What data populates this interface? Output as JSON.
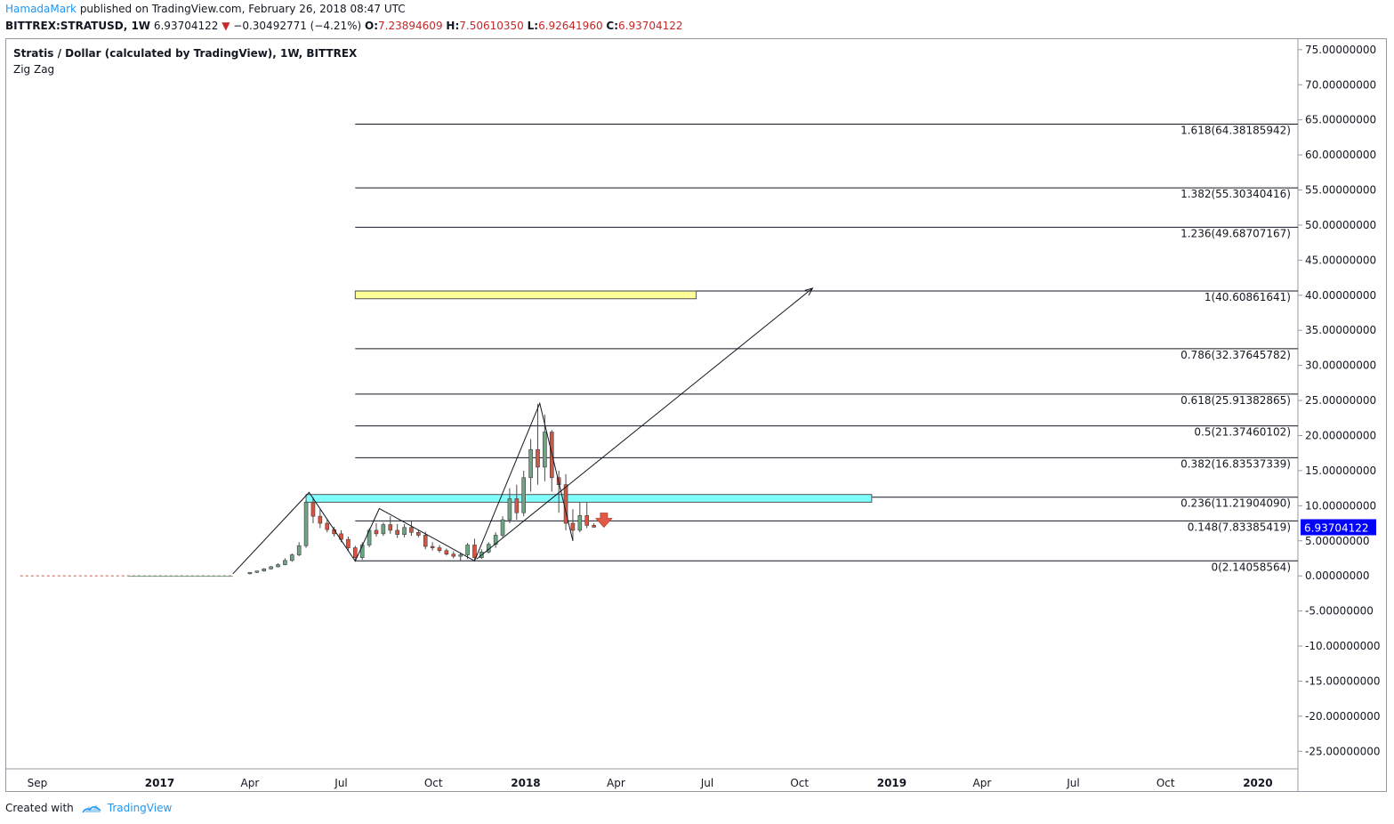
{
  "header": {
    "author": "HamadaMark",
    "published": "published on TradingView.com, February 26, 2018 08:47 UTC",
    "symbol": "BITTREX:STRATUSD, 1W",
    "last": "6.93704122",
    "change_icon": "triangle-down-icon",
    "change": "−0.30492771 (−4.21%)",
    "o_label": "O:",
    "o": "7.23894609",
    "h_label": "H:",
    "h": "7.50610350",
    "l_label": "L:",
    "l": "6.92641960",
    "c_label": "C:",
    "c": "6.93704122"
  },
  "legend": {
    "title": "Stratis / Dollar (calculated by TradingView), 1W, BITTREX",
    "indicator": "Zig Zag"
  },
  "footer": {
    "created_with": "Created with",
    "brand": "TradingView",
    "logo_icon": "tradingview-cloud-icon"
  },
  "colors": {
    "up": "#6ba583",
    "down": "#d75442",
    "price_tag": "#0000ff",
    "highlight_yellow": "#ffff99",
    "highlight_cyan": "#80ffff",
    "arrow_red": "#e05a47"
  },
  "chart_data": {
    "type": "candlestick",
    "title": "Stratis / Dollar (calculated by TradingView), 1W, BITTREX",
    "ylim": [
      -27.5,
      76.5
    ],
    "y_ticks": [
      75,
      70,
      65,
      60,
      55,
      50,
      45,
      40,
      35,
      30,
      25,
      20,
      15,
      10,
      5,
      0,
      -5,
      -10,
      -15,
      -20,
      -25
    ],
    "y_tick_labels": [
      "75.00000000",
      "70.00000000",
      "65.00000000",
      "60.00000000",
      "55.00000000",
      "50.00000000",
      "45.00000000",
      "40.00000000",
      "35.00000000",
      "30.00000000",
      "25.00000000",
      "20.00000000",
      "15.00000000",
      "10.00000000",
      "5.00000000",
      "0.00000000",
      "-5.00000000",
      "-10.00000000",
      "-15.00000000",
      "-20.00000000",
      "-25.00000000"
    ],
    "x_labels": [
      {
        "t": "2016-09-01",
        "label": "Sep",
        "bold": false
      },
      {
        "t": "2017-01-01",
        "label": "2017",
        "bold": true
      },
      {
        "t": "2017-04-01",
        "label": "Apr",
        "bold": false
      },
      {
        "t": "2017-07-01",
        "label": "Jul",
        "bold": false
      },
      {
        "t": "2017-10-01",
        "label": "Oct",
        "bold": false
      },
      {
        "t": "2018-01-01",
        "label": "2018",
        "bold": true
      },
      {
        "t": "2018-04-01",
        "label": "Apr",
        "bold": false
      },
      {
        "t": "2018-07-01",
        "label": "Jul",
        "bold": false
      },
      {
        "t": "2018-10-01",
        "label": "Oct",
        "bold": false
      },
      {
        "t": "2019-01-01",
        "label": "2019",
        "bold": true
      },
      {
        "t": "2019-04-01",
        "label": "Apr",
        "bold": false
      },
      {
        "t": "2019-07-01",
        "label": "Jul",
        "bold": false
      },
      {
        "t": "2019-10-01",
        "label": "Oct",
        "bold": false
      },
      {
        "t": "2020-01-01",
        "label": "2020",
        "bold": true
      }
    ],
    "xlim": [
      "2016-08-01",
      "2020-02-10"
    ],
    "flat_dash_range": [
      "2016-08-15",
      "2017-03-15"
    ],
    "candles": [
      [
        "2017-04-01",
        0.3,
        0.5,
        0.2,
        0.5
      ],
      [
        "2017-04-08",
        0.5,
        0.7,
        0.4,
        0.7
      ],
      [
        "2017-04-15",
        0.7,
        1.1,
        0.6,
        1.0
      ],
      [
        "2017-04-22",
        1.0,
        1.4,
        0.9,
        1.3
      ],
      [
        "2017-04-29",
        1.3,
        1.8,
        1.2,
        1.6
      ],
      [
        "2017-05-06",
        1.6,
        2.5,
        1.5,
        2.2
      ],
      [
        "2017-05-13",
        2.2,
        3.2,
        2.0,
        3.0
      ],
      [
        "2017-05-20",
        3.0,
        4.8,
        2.8,
        4.3
      ],
      [
        "2017-05-27",
        4.3,
        10.8,
        4.0,
        10.5
      ],
      [
        "2017-06-03",
        10.5,
        11.2,
        7.5,
        8.5
      ],
      [
        "2017-06-10",
        8.5,
        9.5,
        6.8,
        7.5
      ],
      [
        "2017-06-17",
        7.5,
        8.0,
        6.2,
        6.6
      ],
      [
        "2017-06-24",
        6.6,
        7.0,
        5.6,
        6.0
      ],
      [
        "2017-07-01",
        6.0,
        6.5,
        4.8,
        5.2
      ],
      [
        "2017-07-08",
        5.2,
        5.6,
        3.6,
        4.0
      ],
      [
        "2017-07-15",
        4.0,
        4.3,
        2.1,
        2.6
      ],
      [
        "2017-07-22",
        2.6,
        4.8,
        2.3,
        4.4
      ],
      [
        "2017-07-29",
        4.4,
        6.8,
        4.1,
        6.5
      ],
      [
        "2017-08-05",
        6.5,
        7.5,
        5.6,
        6.0
      ],
      [
        "2017-08-12",
        6.0,
        7.6,
        5.7,
        7.3
      ],
      [
        "2017-08-19",
        7.3,
        8.5,
        6.0,
        6.5
      ],
      [
        "2017-08-26",
        6.5,
        7.4,
        5.4,
        5.9
      ],
      [
        "2017-09-02",
        5.9,
        7.4,
        5.5,
        6.9
      ],
      [
        "2017-09-09",
        6.9,
        7.8,
        5.7,
        6.2
      ],
      [
        "2017-09-16",
        6.2,
        6.6,
        5.5,
        5.8
      ],
      [
        "2017-09-23",
        5.8,
        6.3,
        3.8,
        4.2
      ],
      [
        "2017-09-30",
        4.2,
        4.8,
        3.6,
        4.0
      ],
      [
        "2017-10-07",
        4.0,
        4.4,
        3.3,
        3.6
      ],
      [
        "2017-10-14",
        3.6,
        3.9,
        2.9,
        3.1
      ],
      [
        "2017-10-21",
        3.1,
        3.5,
        2.5,
        2.8
      ],
      [
        "2017-10-28",
        2.8,
        3.3,
        2.2,
        3.0
      ],
      [
        "2017-11-04",
        3.0,
        4.7,
        2.4,
        4.4
      ],
      [
        "2017-11-11",
        4.4,
        5.3,
        2.1,
        2.6
      ],
      [
        "2017-11-18",
        2.6,
        3.8,
        2.4,
        3.4
      ],
      [
        "2017-11-25",
        3.4,
        4.8,
        3.2,
        4.5
      ],
      [
        "2017-12-02",
        4.5,
        6.2,
        4.0,
        5.8
      ],
      [
        "2017-12-09",
        5.8,
        8.5,
        5.5,
        8.0
      ],
      [
        "2017-12-16",
        8.0,
        12.5,
        7.5,
        11.0
      ],
      [
        "2017-12-23",
        11.0,
        13.0,
        8.0,
        9.0
      ],
      [
        "2017-12-30",
        9.0,
        15.0,
        8.5,
        14.0
      ],
      [
        "2018-01-06",
        14.0,
        19.5,
        12.0,
        18.0
      ],
      [
        "2018-01-13",
        18.0,
        24.5,
        13.0,
        15.5
      ],
      [
        "2018-01-20",
        15.5,
        23.0,
        13.5,
        20.5
      ],
      [
        "2018-01-27",
        20.5,
        20.8,
        12.0,
        14.0
      ],
      [
        "2018-02-03",
        14.0,
        15.0,
        9.0,
        13.0
      ],
      [
        "2018-02-10",
        13.0,
        14.5,
        6.5,
        7.5
      ],
      [
        "2018-02-17",
        7.5,
        9.5,
        5.0,
        6.5
      ],
      [
        "2018-02-24",
        6.5,
        10.5,
        6.2,
        8.6
      ],
      [
        "2018-03-03",
        8.6,
        10.5,
        6.8,
        7.2
      ],
      [
        "2018-03-10",
        7.2,
        7.5,
        6.9,
        6.94
      ]
    ],
    "zigzag": [
      [
        "2017-03-15",
        0.3
      ],
      [
        "2017-05-30",
        11.9
      ],
      [
        "2017-07-15",
        2.1
      ],
      [
        "2017-08-08",
        9.6
      ],
      [
        "2017-11-11",
        2.14
      ],
      [
        "2018-01-15",
        24.6
      ],
      [
        "2018-02-17",
        5.0
      ]
    ],
    "projection_arrow": [
      [
        "2017-11-13",
        2.4
      ],
      [
        "2018-10-14",
        41.0
      ]
    ],
    "fib_start": "2017-07-15",
    "fib_end": "2018-12-31",
    "fib_levels": [
      {
        "price": 64.38185942,
        "label": "1.618(64.38185942)"
      },
      {
        "price": 55.30340416,
        "label": "1.382(55.30340416)"
      },
      {
        "price": 49.68707167,
        "label": "1.236(49.68707167)"
      },
      {
        "price": 40.60861641,
        "label": "1(40.60861641)"
      },
      {
        "price": 32.37645782,
        "label": "0.786(32.37645782)"
      },
      {
        "price": 25.91382865,
        "label": "0.618(25.91382865)"
      },
      {
        "price": 21.37460102,
        "label": "0.5(21.37460102)"
      },
      {
        "price": 16.83537339,
        "label": "0.382(16.83537339)"
      },
      {
        "price": 11.2190409,
        "label": "0.236(11.21904090)"
      },
      {
        "price": 7.83385419,
        "label": "0.148(7.83385419)"
      },
      {
        "price": 2.14058564,
        "label": "0(2.14058564)"
      }
    ],
    "zones": [
      {
        "name": "yellow-zone",
        "t0": "2017-07-15",
        "t1": "2018-06-20",
        "y0": 39.5,
        "y1": 40.6,
        "color": "#ffff99"
      },
      {
        "name": "cyan-zone",
        "t0": "2017-05-27",
        "t1": "2018-12-12",
        "y0": 10.5,
        "y1": 11.6,
        "color": "#80ffff"
      }
    ],
    "sell_arrow": {
      "t": "2018-03-20",
      "y": 8.2
    },
    "last_price_label": "6.93704122",
    "last_price": 6.93704122
  }
}
